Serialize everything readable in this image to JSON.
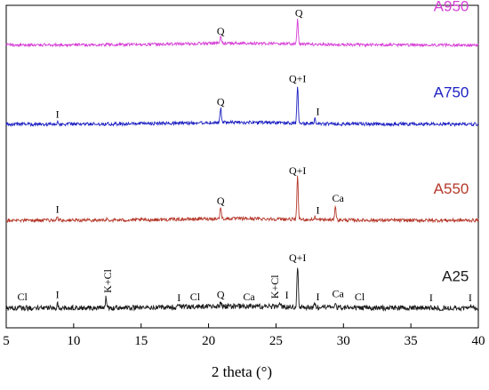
{
  "chart_data": {
    "type": "line",
    "xlabel": "2 theta (°)",
    "ylabel": "",
    "xlim": [
      5,
      40
    ],
    "x_ticks": [
      "5",
      "10",
      "15",
      "20",
      "25",
      "30",
      "35",
      "40"
    ],
    "y_axis_shown": false,
    "grid": false,
    "legend": "inline labels at right",
    "series": [
      {
        "name": "A950",
        "color": "#d63fd6",
        "offset": 1000,
        "noise": 5,
        "peaks": [
          {
            "x": 20.9,
            "height": 24
          },
          {
            "x": 26.6,
            "height": 88
          },
          {
            "x": 12.5,
            "height": 6
          }
        ],
        "peak_labels": [
          {
            "text": "Q",
            "x": 20.9
          },
          {
            "text": "Q",
            "x": 26.7
          }
        ]
      },
      {
        "name": "A750",
        "color": "#1e22c2",
        "offset": 720,
        "noise": 6,
        "peaks": [
          {
            "x": 8.8,
            "height": 8
          },
          {
            "x": 20.9,
            "height": 52
          },
          {
            "x": 26.6,
            "height": 135
          },
          {
            "x": 27.9,
            "height": 18
          },
          {
            "x": 12.5,
            "height": 6
          }
        ],
        "peak_labels": [
          {
            "text": "I",
            "x": 8.8
          },
          {
            "text": "Q",
            "x": 20.9
          },
          {
            "text": "Q+I",
            "x": 26.6
          },
          {
            "text": "I",
            "x": 28.1
          }
        ]
      },
      {
        "name": "A550",
        "color": "#b5382a",
        "offset": 380,
        "noise": 6,
        "peaks": [
          {
            "x": 8.8,
            "height": 12
          },
          {
            "x": 20.9,
            "height": 42
          },
          {
            "x": 26.6,
            "height": 150
          },
          {
            "x": 27.9,
            "height": 10
          },
          {
            "x": 29.4,
            "height": 52
          },
          {
            "x": 12.5,
            "height": 5
          }
        ],
        "peak_labels": [
          {
            "text": "I",
            "x": 8.8
          },
          {
            "text": "Q",
            "x": 20.9
          },
          {
            "text": "Q+I",
            "x": 26.6
          },
          {
            "text": "I",
            "x": 28.1
          },
          {
            "text": "Ca",
            "x": 29.6
          }
        ]
      },
      {
        "name": "A25",
        "color": "#1a1a1a",
        "offset": 70,
        "noise": 9,
        "peaks": [
          {
            "x": 8.8,
            "height": 18
          },
          {
            "x": 12.4,
            "height": 36
          },
          {
            "x": 17.8,
            "height": 8
          },
          {
            "x": 20.9,
            "height": 18
          },
          {
            "x": 25.3,
            "height": 16
          },
          {
            "x": 26.6,
            "height": 148
          },
          {
            "x": 27.9,
            "height": 10
          },
          {
            "x": 29.4,
            "height": 22
          },
          {
            "x": 36.5,
            "height": 8
          },
          {
            "x": 39.4,
            "height": 8
          }
        ],
        "peak_labels": [
          {
            "text": "Cl",
            "x": 6.2
          },
          {
            "text": "I",
            "x": 8.8
          },
          {
            "text": "K+Cl",
            "x": 12.5,
            "rotated": true
          },
          {
            "text": "I",
            "x": 17.8
          },
          {
            "text": "Cl",
            "x": 19.0
          },
          {
            "text": "Q",
            "x": 20.9
          },
          {
            "text": "Ca",
            "x": 23.0
          },
          {
            "text": "K+Cl",
            "x": 24.9,
            "rotated": true
          },
          {
            "text": "I",
            "x": 25.8
          },
          {
            "text": "Q+I",
            "x": 26.6
          },
          {
            "text": "I",
            "x": 28.1
          },
          {
            "text": "Ca",
            "x": 29.6
          },
          {
            "text": "Cl",
            "x": 31.2
          },
          {
            "text": "I",
            "x": 36.5
          },
          {
            "text": "I",
            "x": 39.4
          }
        ]
      }
    ]
  }
}
